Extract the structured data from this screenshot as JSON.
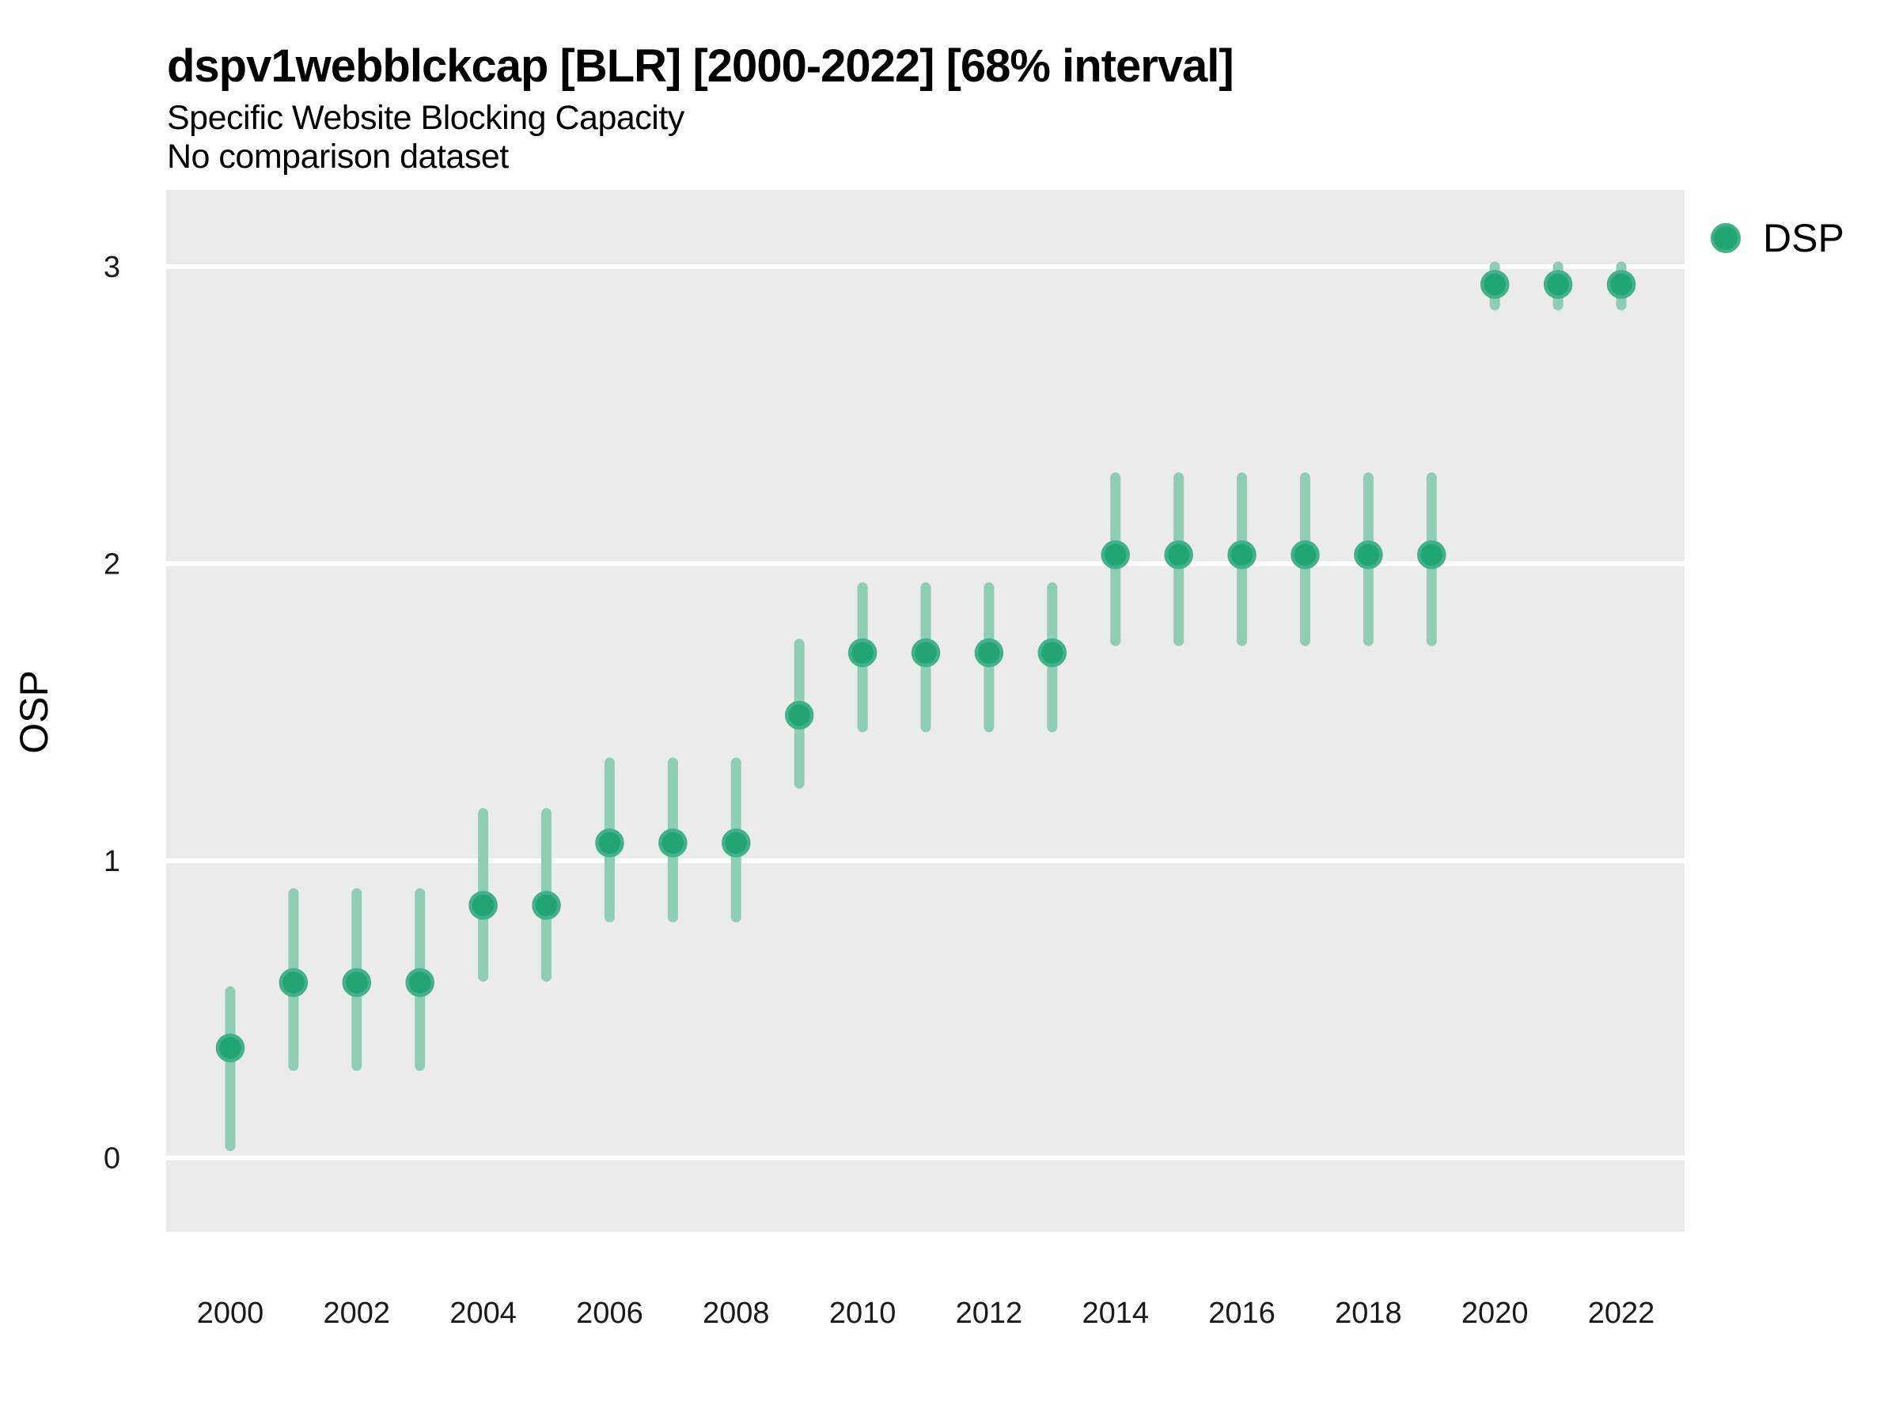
{
  "header": {
    "title": "dspv1webblckcap [BLR] [2000-2022] [68% interval]",
    "subtitle": "Specific Website Blocking Capacity",
    "note": "No comparison dataset"
  },
  "legend": {
    "position": "top-right",
    "items": [
      {
        "label": "DSP",
        "marker": "circle-icon",
        "color": "#21A573"
      }
    ]
  },
  "chart_data": {
    "type": "scatter",
    "title": "dspv1webblckcap [BLR] [2000-2022] [68% interval]",
    "subtitle": "Specific Website Blocking Capacity",
    "annotation": "No comparison dataset",
    "interval_label": "68% interval",
    "xlabel": "",
    "ylabel": "OSP",
    "x_tick_labels": [
      "2000",
      "2002",
      "2004",
      "2006",
      "2008",
      "2010",
      "2012",
      "2014",
      "2016",
      "2018",
      "2020",
      "2022"
    ],
    "y_tick_labels": [
      "0",
      "1",
      "2",
      "3"
    ],
    "ylim": [
      -0.25,
      3.25
    ],
    "grid": "major-horizontal-white-on-gray",
    "legend_position": "top-right",
    "series": [
      {
        "name": "DSP",
        "points": [
          {
            "year": 2000,
            "value": 0.37,
            "lower": 0.04,
            "upper": 0.56
          },
          {
            "year": 2001,
            "value": 0.59,
            "lower": 0.31,
            "upper": 0.89
          },
          {
            "year": 2002,
            "value": 0.59,
            "lower": 0.31,
            "upper": 0.89
          },
          {
            "year": 2003,
            "value": 0.59,
            "lower": 0.31,
            "upper": 0.89
          },
          {
            "year": 2004,
            "value": 0.85,
            "lower": 0.61,
            "upper": 1.16
          },
          {
            "year": 2005,
            "value": 0.85,
            "lower": 0.61,
            "upper": 1.16
          },
          {
            "year": 2006,
            "value": 1.06,
            "lower": 0.81,
            "upper": 1.33
          },
          {
            "year": 2007,
            "value": 1.06,
            "lower": 0.81,
            "upper": 1.33
          },
          {
            "year": 2008,
            "value": 1.06,
            "lower": 0.81,
            "upper": 1.33
          },
          {
            "year": 2009,
            "value": 1.49,
            "lower": 1.26,
            "upper": 1.73
          },
          {
            "year": 2010,
            "value": 1.7,
            "lower": 1.45,
            "upper": 1.92
          },
          {
            "year": 2011,
            "value": 1.7,
            "lower": 1.45,
            "upper": 1.92
          },
          {
            "year": 2012,
            "value": 1.7,
            "lower": 1.45,
            "upper": 1.92
          },
          {
            "year": 2013,
            "value": 1.7,
            "lower": 1.45,
            "upper": 1.92
          },
          {
            "year": 2014,
            "value": 2.03,
            "lower": 1.74,
            "upper": 2.29
          },
          {
            "year": 2015,
            "value": 2.03,
            "lower": 1.74,
            "upper": 2.29
          },
          {
            "year": 2016,
            "value": 2.03,
            "lower": 1.74,
            "upper": 2.29
          },
          {
            "year": 2017,
            "value": 2.03,
            "lower": 1.74,
            "upper": 2.29
          },
          {
            "year": 2018,
            "value": 2.03,
            "lower": 1.74,
            "upper": 2.29
          },
          {
            "year": 2019,
            "value": 2.03,
            "lower": 1.74,
            "upper": 2.29
          },
          {
            "year": 2020,
            "value": 2.94,
            "lower": 2.87,
            "upper": 3.0
          },
          {
            "year": 2021,
            "value": 2.94,
            "lower": 2.87,
            "upper": 3.0
          },
          {
            "year": 2022,
            "value": 2.94,
            "lower": 2.87,
            "upper": 3.0
          }
        ]
      }
    ],
    "colors": {
      "point_fill": "#21A573",
      "point_stroke": "#43B189",
      "error_bar": "#8FCDB5",
      "panel_background": "#EBEBEB",
      "gridline": "#FFFFFF",
      "text": "#000000"
    }
  }
}
